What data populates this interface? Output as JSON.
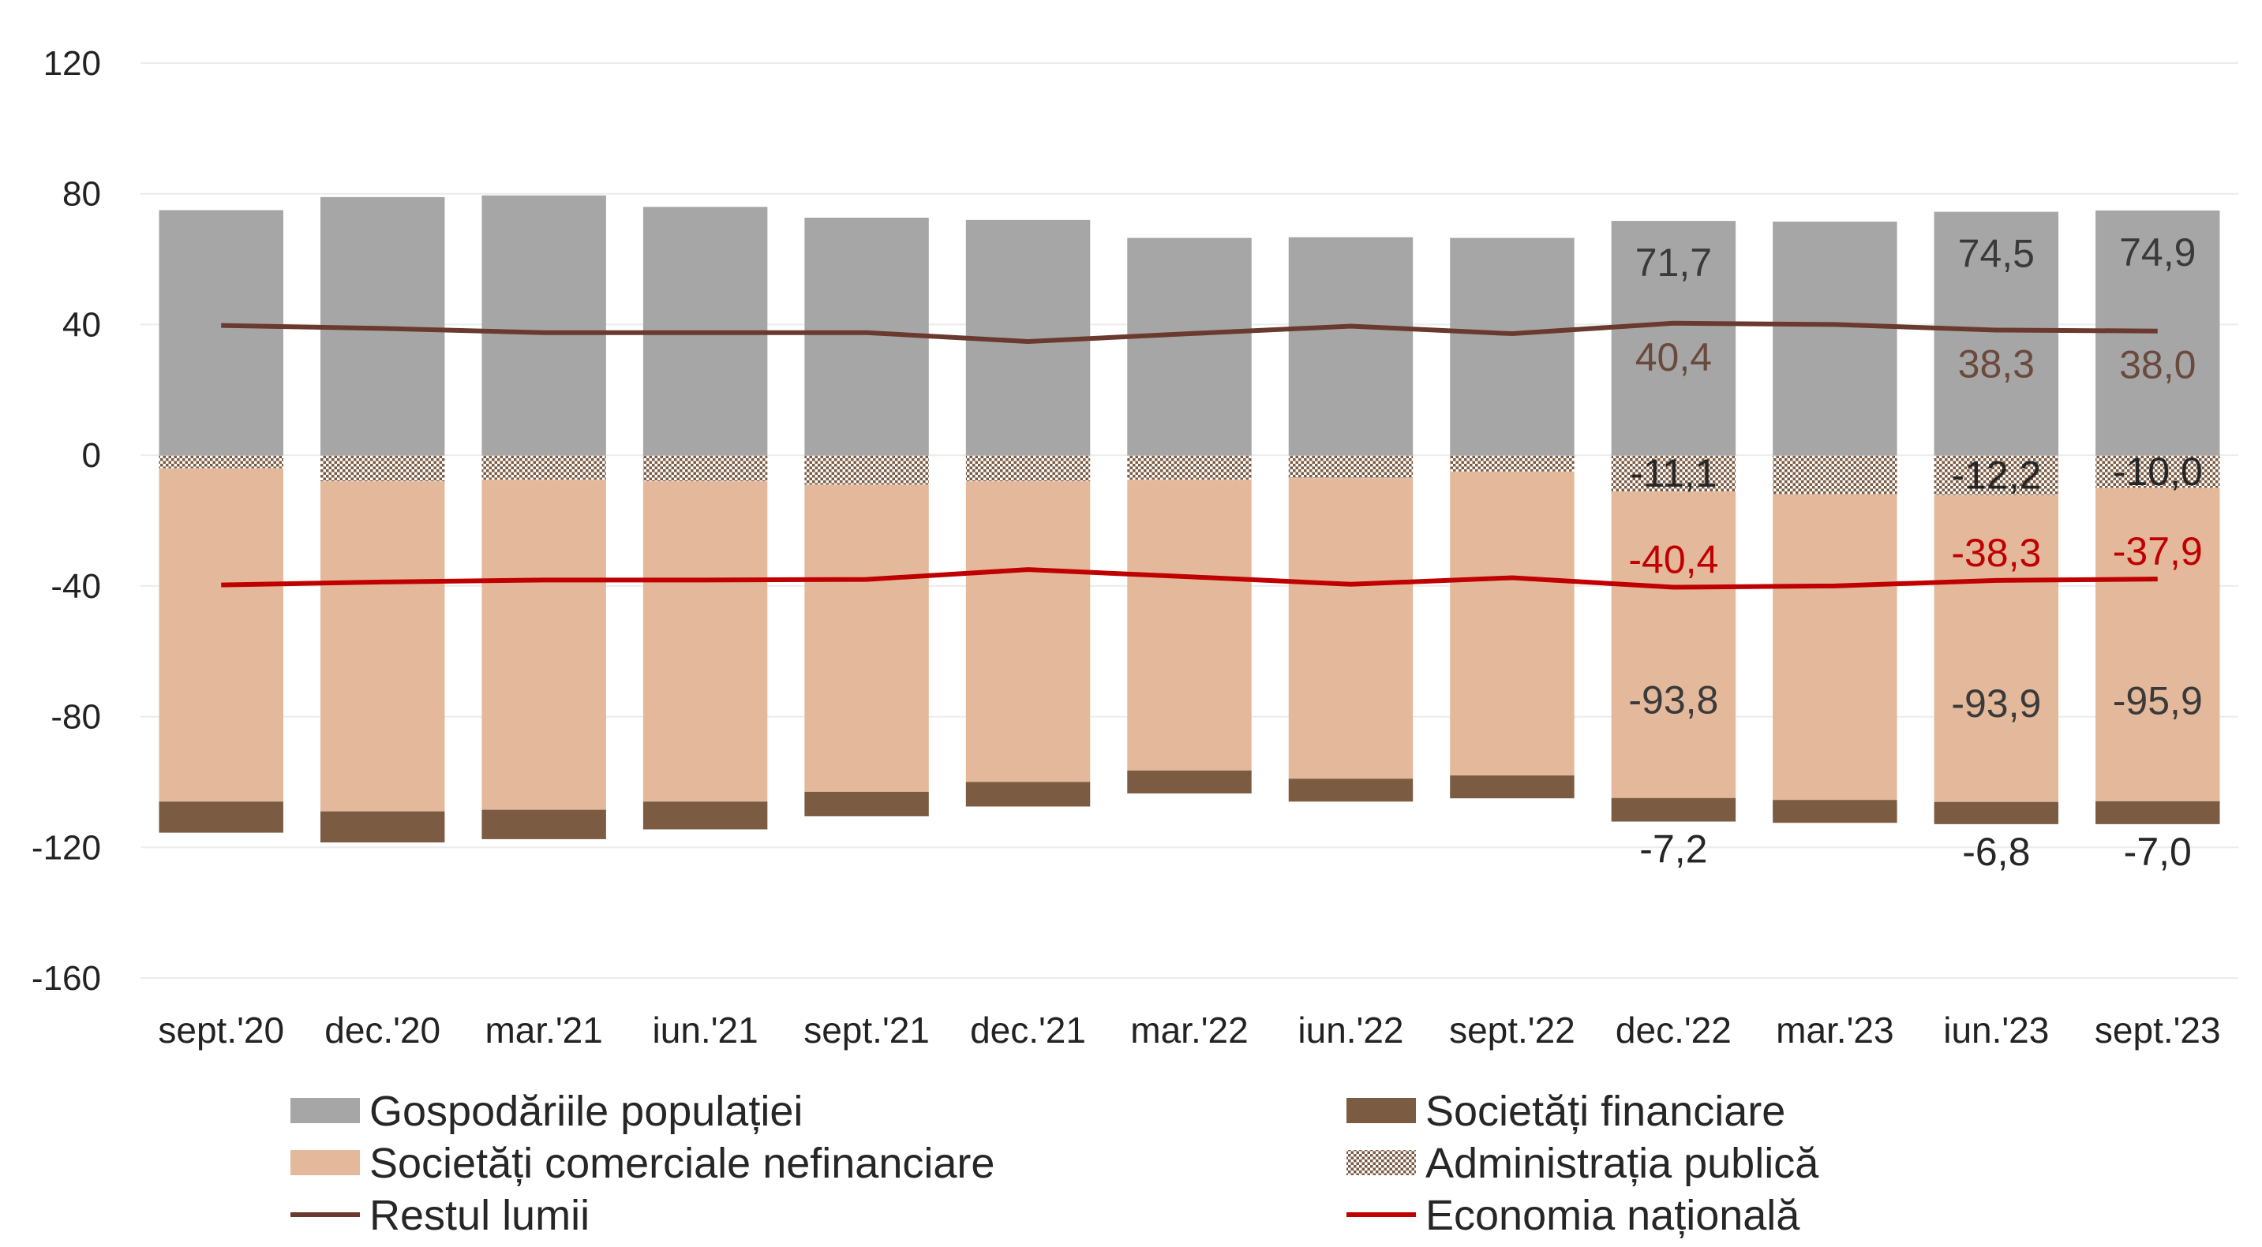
{
  "chart_data": {
    "type": "bar",
    "stacked": true,
    "categories": [
      "sept.'20",
      "dec.'20",
      "mar.'21",
      "iun.'21",
      "sept.'21",
      "dec.'21",
      "mar.'22",
      "iun.'22",
      "sept.'22",
      "dec.'22",
      "mar.'23",
      "iun.'23",
      "sept.'23"
    ],
    "ylim": [
      -160,
      120
    ],
    "yticks": [
      120,
      80,
      40,
      0,
      -40,
      -80,
      -120,
      -160
    ],
    "grid": true,
    "legend_position": "bottom",
    "series": [
      {
        "name": "Gospodăriile populației",
        "kind": "bar",
        "color": "#a6a6a6",
        "pattern": "solid",
        "values": [
          75.0,
          79.0,
          79.5,
          76.0,
          72.7,
          72.0,
          66.5,
          66.7,
          66.5,
          71.7,
          71.5,
          74.5,
          74.9
        ]
      },
      {
        "name": "Administrația publică",
        "kind": "bar",
        "color": "#8c6b50",
        "pattern": "dots",
        "values": [
          -4.0,
          -8.0,
          -7.5,
          -8.0,
          -9.0,
          -8.0,
          -7.5,
          -7.0,
          -5.0,
          -11.1,
          -12.0,
          -12.2,
          -10.0
        ]
      },
      {
        "name": "Societăți comerciale nefinanciare",
        "kind": "bar",
        "color": "#e3b89b",
        "pattern": "solid",
        "values": [
          -102.0,
          -101.0,
          -101.0,
          -98.0,
          -94.0,
          -92.0,
          -89.0,
          -92.0,
          -93.0,
          -93.8,
          -93.5,
          -93.9,
          -95.9
        ]
      },
      {
        "name": "Societăți financiare",
        "kind": "bar",
        "color": "#7b5b41",
        "pattern": "solid",
        "values": [
          -9.5,
          -9.5,
          -9.0,
          -8.5,
          -7.5,
          -7.5,
          -7.0,
          -7.0,
          -7.0,
          -7.2,
          -7.0,
          -6.8,
          -7.0
        ]
      },
      {
        "name": "Restul lumii",
        "kind": "line",
        "color": "#6b3a2e",
        "values": [
          39.7,
          38.8,
          37.5,
          37.5,
          37.5,
          34.8,
          37.2,
          39.5,
          37.2,
          40.4,
          40.0,
          38.3,
          38.0
        ]
      },
      {
        "name": "Economia națională",
        "kind": "line",
        "color": "#c00000",
        "values": [
          -39.7,
          -38.8,
          -38.2,
          -38.2,
          -38.0,
          -35.0,
          -37.2,
          -39.5,
          -37.5,
          -40.4,
          -40.0,
          -38.3,
          -37.9
        ]
      }
    ],
    "data_labels": [
      {
        "category_index": 9,
        "series": "Gospodăriile populației",
        "text": "71,7",
        "color": "#3a3a3a"
      },
      {
        "category_index": 11,
        "series": "Gospodăriile populației",
        "text": "74,5",
        "color": "#3a3a3a"
      },
      {
        "category_index": 12,
        "series": "Gospodăriile populației",
        "text": "74,9",
        "color": "#3a3a3a"
      },
      {
        "category_index": 9,
        "series": "Restul lumii",
        "text": "40,4",
        "color": "#6b4a3e"
      },
      {
        "category_index": 11,
        "series": "Restul lumii",
        "text": "38,3",
        "color": "#6b4a3e"
      },
      {
        "category_index": 12,
        "series": "Restul lumii",
        "text": "38,0",
        "color": "#6b4a3e"
      },
      {
        "category_index": 9,
        "series": "Administrația publică",
        "text": "-11,1",
        "color": "#262626"
      },
      {
        "category_index": 11,
        "series": "Administrația publică",
        "text": "-12,2",
        "color": "#262626"
      },
      {
        "category_index": 12,
        "series": "Administrația publică",
        "text": "-10,0",
        "color": "#262626"
      },
      {
        "category_index": 9,
        "series": "Economia națională",
        "text": "-40,4",
        "color": "#c00000"
      },
      {
        "category_index": 11,
        "series": "Economia națională",
        "text": "-38,3",
        "color": "#c00000"
      },
      {
        "category_index": 12,
        "series": "Economia națională",
        "text": "-37,9",
        "color": "#c00000"
      },
      {
        "category_index": 9,
        "series": "Societăți comerciale nefinanciare",
        "text": "-93,8",
        "color": "#3a3a3a"
      },
      {
        "category_index": 11,
        "series": "Societăți comerciale nefinanciare",
        "text": "-93,9",
        "color": "#3a3a3a"
      },
      {
        "category_index": 12,
        "series": "Societăți comerciale nefinanciare",
        "text": "-95,9",
        "color": "#3a3a3a"
      },
      {
        "category_index": 9,
        "series": "Societăți financiare",
        "text": "-7,2",
        "color": "#262626"
      },
      {
        "category_index": 11,
        "series": "Societăți financiare",
        "text": "-6,8",
        "color": "#262626"
      },
      {
        "category_index": 12,
        "series": "Societăți financiare",
        "text": "-7,0",
        "color": "#262626"
      }
    ],
    "legend": [
      {
        "name": "Gospodăriile populației",
        "symbol": "box",
        "color": "#a6a6a6",
        "pattern": "solid"
      },
      {
        "name": "Societăți financiare",
        "symbol": "box",
        "color": "#7b5b41",
        "pattern": "solid"
      },
      {
        "name": "Societăți comerciale nefinanciare",
        "symbol": "box",
        "color": "#e3b89b",
        "pattern": "solid"
      },
      {
        "name": "Administrația publică",
        "symbol": "box",
        "color": "#8c6b50",
        "pattern": "dots"
      },
      {
        "name": "Restul lumii",
        "symbol": "line",
        "color": "#6b3a2e"
      },
      {
        "name": "Economia națională",
        "symbol": "line",
        "color": "#c00000"
      }
    ]
  }
}
